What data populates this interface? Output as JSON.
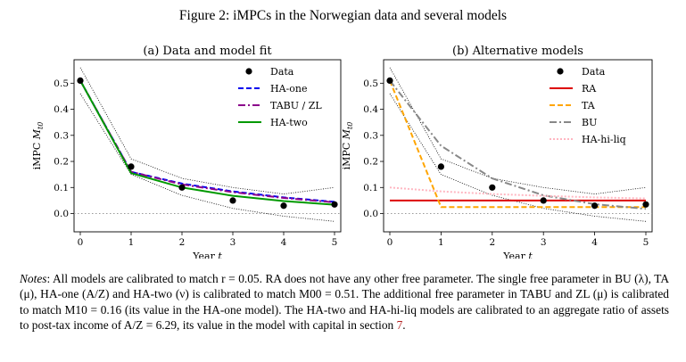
{
  "figure_title": "Figure 2: iMPCs in the Norwegian data and several models",
  "chart_data": [
    {
      "type": "line",
      "title": "(a) Data and model fit",
      "xlabel": "Year t",
      "ylabel": "iMPC M_t0",
      "xlim": [
        0,
        5
      ],
      "ylim": [
        -0.07,
        0.59
      ],
      "x_ticks": [
        "0",
        "1",
        "2",
        "3",
        "4",
        "5"
      ],
      "y_ticks": [
        "0.0",
        "0.1",
        "0.2",
        "0.3",
        "0.4",
        "0.5"
      ],
      "grid": false,
      "legend_position": "top-right",
      "x": [
        0,
        1,
        2,
        3,
        4,
        5
      ],
      "data_points": {
        "name": "Data",
        "color": "#000000",
        "values": [
          0.51,
          0.18,
          0.1,
          0.05,
          0.03,
          0.035
        ]
      },
      "confidence_upper": [
        0.56,
        0.21,
        0.135,
        0.1,
        0.075,
        0.1
      ],
      "confidence_lower": [
        0.46,
        0.15,
        0.07,
        0.02,
        -0.01,
        -0.03
      ],
      "zero_line": 0.0,
      "series": [
        {
          "name": "HA-one",
          "color": "#0000ee",
          "style": "dashed",
          "values": [
            0.51,
            0.16,
            0.115,
            0.085,
            0.062,
            0.045
          ]
        },
        {
          "name": "TABU / ZL",
          "color": "#8b008b",
          "style": "dashdot",
          "values": [
            0.51,
            0.16,
            0.112,
            0.082,
            0.06,
            0.043
          ]
        },
        {
          "name": "HA-two",
          "color": "#009900",
          "style": "solid",
          "values": [
            0.51,
            0.155,
            0.1,
            0.068,
            0.048,
            0.034
          ]
        }
      ]
    },
    {
      "type": "line",
      "title": "(b) Alternative models",
      "xlabel": "Year t",
      "ylabel": "iMPC M_t0",
      "xlim": [
        0,
        5
      ],
      "ylim": [
        -0.07,
        0.59
      ],
      "x_ticks": [
        "0",
        "1",
        "2",
        "3",
        "4",
        "5"
      ],
      "y_ticks": [
        "0.0",
        "0.1",
        "0.2",
        "0.3",
        "0.4",
        "0.5"
      ],
      "grid": false,
      "legend_position": "top-right",
      "x": [
        0,
        1,
        2,
        3,
        4,
        5
      ],
      "data_points": {
        "name": "Data",
        "color": "#000000",
        "values": [
          0.51,
          0.18,
          0.1,
          0.05,
          0.03,
          0.035
        ]
      },
      "confidence_upper": [
        0.56,
        0.21,
        0.135,
        0.1,
        0.075,
        0.1
      ],
      "confidence_lower": [
        0.46,
        0.15,
        0.07,
        0.02,
        -0.01,
        -0.03
      ],
      "zero_line": 0.0,
      "series": [
        {
          "name": "RA",
          "color": "#dd0000",
          "style": "solid",
          "values": [
            0.05,
            0.05,
            0.05,
            0.05,
            0.05,
            0.05
          ]
        },
        {
          "name": "TA",
          "color": "#ffa500",
          "style": "dashed",
          "values": [
            0.51,
            0.025,
            0.025,
            0.025,
            0.025,
            0.025
          ]
        },
        {
          "name": "BU",
          "color": "#888888",
          "style": "dashdot",
          "values": [
            0.51,
            0.26,
            0.135,
            0.07,
            0.036,
            0.018
          ]
        },
        {
          "name": "HA-hi-liq",
          "color": "#ffb6c1",
          "style": "dotted",
          "values": [
            0.1,
            0.085,
            0.075,
            0.068,
            0.062,
            0.058
          ]
        }
      ]
    }
  ],
  "notes": {
    "label": "Notes",
    "text_before_ref": ": All models are calibrated to match r = 0.05. RA does not have any other free parameter. The single free parameter in BU (λ), TA (μ), HA-one (A/Z) and HA-two (ν) is calibrated to match M00 = 0.51. The additional free parameter in TABU and ZL (μ) is calibrated to match M10 = 0.16 (its value in the HA-one model). The HA-two and HA-hi-liq models are calibrated to an aggregate ratio of assets to post-tax income of A/Z = 6.29, its value in the model with capital in section ",
    "section_ref": "7",
    "text_after_ref": "."
  }
}
